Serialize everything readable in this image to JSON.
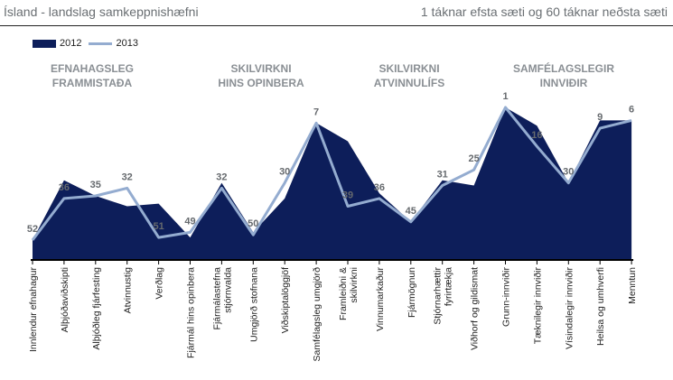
{
  "header": {
    "left": "Ísland - landslag samkeppnishæfni",
    "right": "1 táknar efsta sæti og 60 táknar neðsta sæti"
  },
  "chart_data": {
    "type": "area",
    "categories": [
      "Innlendur efnahagur",
      "Alþjóðaviðskipti",
      "Alþjóðleg fjárfesting",
      "Atvinnustig",
      "Verðlag",
      "Fjármál hins opinbera",
      "Fjármálastefna stjórnvalda",
      "Umgjörð stofnana",
      "Viðskiptalöggjöf",
      "Samfélagsleg umgjörð",
      "Framleiðni & skilvirkni",
      "Vinnumarkaður",
      "Fjármögnun",
      "Stjórnarhættir fyrirtækja",
      "Viðhorf og gildismat",
      "Grunn-innviðir",
      "Tæknilegir innviðir",
      "Vísindalegir innviðir",
      "Heilsa og umhverfi",
      "Menntun"
    ],
    "series": [
      {
        "name": "2012",
        "values": [
          52,
          29,
          35,
          39,
          38,
          51,
          30,
          49,
          36,
          7,
          14,
          34,
          45,
          29,
          31,
          1,
          8,
          30,
          6,
          6
        ]
      },
      {
        "name": "2013",
        "values": [
          52,
          36,
          35,
          32,
          51,
          49,
          32,
          50,
          30,
          7,
          39,
          36,
          45,
          31,
          25,
          1,
          16,
          30,
          9,
          6
        ]
      }
    ],
    "data_labels": [
      "52",
      "36",
      "35",
      "32",
      "51",
      "49",
      "32",
      "50",
      "30",
      "7",
      "39",
      "36",
      "45",
      "31",
      "25",
      "1",
      "16",
      "30",
      "9",
      "6"
    ],
    "groups": [
      {
        "label": [
          "EFNAHAGSLEG",
          "FRAMMISTAÐA"
        ]
      },
      {
        "label": [
          "SKILVIRKNI",
          "HINS OPINBERA"
        ]
      },
      {
        "label": [
          "SKILVIRKNI",
          "ATVINNULÍFS"
        ]
      },
      {
        "label": [
          "SAMFÉLAGSLEGIR",
          "INNVIÐIR"
        ]
      }
    ],
    "y_inverted": true,
    "ylim": [
      60,
      1
    ],
    "legend_position": "top-left",
    "colors": {
      "2012": "#0d1e5a",
      "2013": "#94acd0"
    }
  }
}
